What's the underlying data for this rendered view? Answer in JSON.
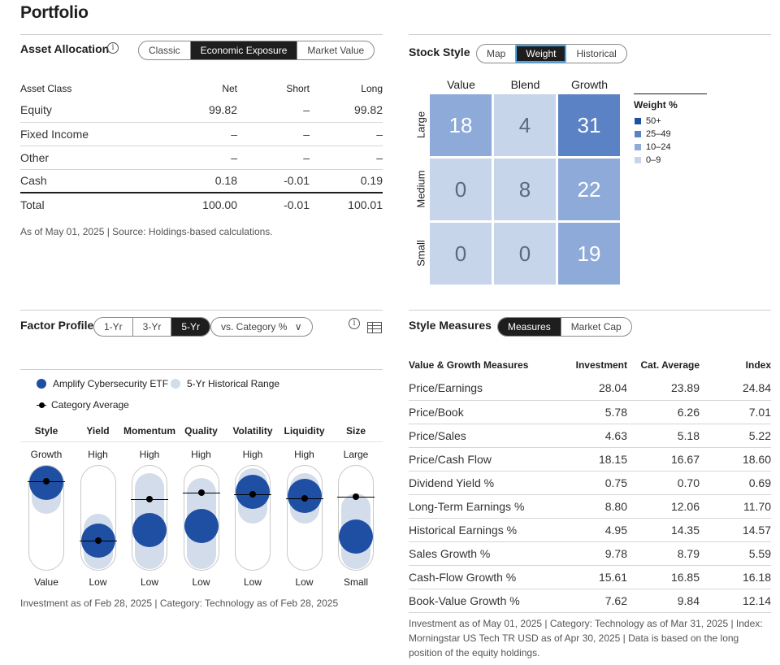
{
  "page_title": "Portfolio",
  "asset_allocation": {
    "title": "Asset Allocation",
    "tabs": [
      "Classic",
      "Economic Exposure",
      "Market Value"
    ],
    "active_tab": 1,
    "columns": [
      "Asset Class",
      "Net",
      "Short",
      "Long"
    ],
    "rows": [
      {
        "label": "Equity",
        "net": "99.82",
        "short": "–",
        "long": "99.82"
      },
      {
        "label": "Fixed Income",
        "net": "–",
        "short": "–",
        "long": "–"
      },
      {
        "label": "Other",
        "net": "–",
        "short": "–",
        "long": "–"
      },
      {
        "label": "Cash",
        "net": "0.18",
        "short": "-0.01",
        "long": "0.19"
      }
    ],
    "total": {
      "label": "Total",
      "net": "100.00",
      "short": "-0.01",
      "long": "100.01"
    },
    "footnote": "As of May 01, 2025 | Source: Holdings-based calculations."
  },
  "stock_style": {
    "title": "Stock Style",
    "tabs": [
      "Map",
      "Weight",
      "Historical"
    ],
    "active_tab": 1,
    "columns": [
      "Value",
      "Blend",
      "Growth"
    ],
    "rows": [
      "Large",
      "Medium",
      "Small"
    ],
    "grid": [
      [
        "18",
        "4",
        "31"
      ],
      [
        "0",
        "8",
        "22"
      ],
      [
        "0",
        "0",
        "19"
      ]
    ],
    "legend_title": "Weight %",
    "legend": [
      {
        "label": "50+",
        "color": "#1e4fa3"
      },
      {
        "label": "25–49",
        "color": "#5b82c4"
      },
      {
        "label": "10–24",
        "color": "#8eaad8"
      },
      {
        "label": "0–9",
        "color": "#c7d5ea"
      }
    ]
  },
  "factor_profile": {
    "title": "Factor Profile",
    "tabs": [
      "1-Yr",
      "3-Yr",
      "5-Yr"
    ],
    "active_tab": 2,
    "dropdown": "vs. Category %",
    "legend": {
      "fund": "Amplify Cybersecurity ETF",
      "range": "5-Yr Historical Range",
      "category": "Category Average"
    },
    "factors": [
      {
        "name": "Style",
        "high": "Growth",
        "low": "Value",
        "fund": 0.85,
        "cat": 0.85,
        "range": [
          0.55,
          1.0
        ]
      },
      {
        "name": "Yield",
        "high": "High",
        "low": "Low",
        "fund": 0.28,
        "cat": 0.28,
        "range": [
          0.0,
          0.55
        ]
      },
      {
        "name": "Momentum",
        "high": "High",
        "low": "Low",
        "fund": 0.38,
        "cat": 0.68,
        "range": [
          0.0,
          0.95
        ]
      },
      {
        "name": "Quality",
        "high": "High",
        "low": "Low",
        "fund": 0.42,
        "cat": 0.74,
        "range": [
          0.0,
          0.9
        ]
      },
      {
        "name": "Volatility",
        "high": "High",
        "low": "Low",
        "fund": 0.75,
        "cat": 0.73,
        "range": [
          0.45,
          1.0
        ]
      },
      {
        "name": "Liquidity",
        "high": "High",
        "low": "Low",
        "fund": 0.71,
        "cat": 0.69,
        "range": [
          0.45,
          0.95
        ]
      },
      {
        "name": "Size",
        "high": "Large",
        "low": "Small",
        "fund": 0.32,
        "cat": 0.7,
        "range": [
          0.0,
          0.75
        ]
      }
    ],
    "footnote": "Investment as of Feb 28, 2025 | Category: Technology as of Feb 28, 2025"
  },
  "style_measures": {
    "title": "Style Measures",
    "tabs": [
      "Measures",
      "Market Cap"
    ],
    "active_tab": 0,
    "columns": [
      "Value & Growth Measures",
      "Investment",
      "Cat. Average",
      "Index"
    ],
    "rows": [
      [
        "Price/Earnings",
        "28.04",
        "23.89",
        "24.84"
      ],
      [
        "Price/Book",
        "5.78",
        "6.26",
        "7.01"
      ],
      [
        "Price/Sales",
        "4.63",
        "5.18",
        "5.22"
      ],
      [
        "Price/Cash Flow",
        "18.15",
        "16.67",
        "18.60"
      ],
      [
        "Dividend Yield %",
        "0.75",
        "0.70",
        "0.69"
      ],
      [
        "Long-Term Earnings %",
        "8.80",
        "12.06",
        "11.70"
      ],
      [
        "Historical Earnings %",
        "4.95",
        "14.35",
        "14.57"
      ],
      [
        "Sales Growth %",
        "9.78",
        "8.79",
        "5.59"
      ],
      [
        "Cash-Flow Growth %",
        "15.61",
        "16.85",
        "16.18"
      ],
      [
        "Book-Value Growth %",
        "7.62",
        "9.84",
        "12.14"
      ]
    ],
    "footnote": "Investment as of May 01, 2025 | Category: Technology as of Mar 31, 2025 | Index: Morningstar US Tech TR USD as of Apr 30, 2025 | Data is based on the long position of the equity holdings."
  }
}
